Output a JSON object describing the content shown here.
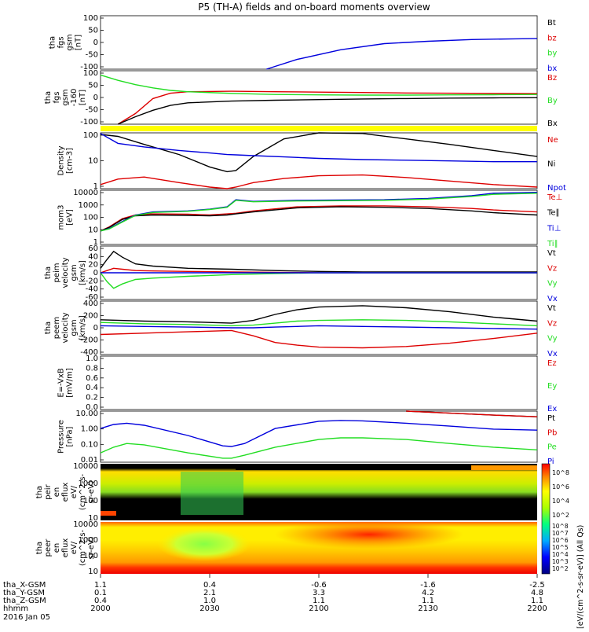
{
  "title": "P5 (TH-A) fields and on-board moments overview",
  "footer": {
    "rows": [
      {
        "label": "tha_X-GSM",
        "values": [
          "1.1",
          "0.4",
          "-0.6",
          "-1.6",
          "-2.5"
        ]
      },
      {
        "label": "tha_Y-GSM",
        "values": [
          "0.1",
          "2.1",
          "3.3",
          "4.2",
          "4.8"
        ]
      },
      {
        "label": "tha_Z-GSM",
        "values": [
          "0.4",
          "1.0",
          "1.1",
          "1.1",
          "1.1"
        ]
      },
      {
        "label": "hhmm",
        "values": [
          "2000",
          "2030",
          "2100",
          "2130",
          "2200"
        ]
      }
    ],
    "date": "2016 Jan 05"
  },
  "colorbar": {
    "label": "[eV/(cm^2-s-sr-eV)] (All Qs)",
    "ticks_upper": [
      "10^8",
      "10^6",
      "10^4",
      "10^2"
    ],
    "ticks_lower": [
      "10^8",
      "10^7",
      "10^6",
      "10^5",
      "10^4",
      "10^3",
      "10^2"
    ]
  },
  "colors": {
    "black": "#000000",
    "red": "#dd0000",
    "green": "#22dd22",
    "blue": "#0000dd",
    "yellow": "#ffff00"
  },
  "chart_data": [
    {
      "id": "fgs-gsm",
      "type": "line",
      "ylabel": [
        "tha",
        "fgs",
        "gsm",
        "[nT]"
      ],
      "yticks": [
        "100",
        "50",
        "0",
        "-50",
        "-100"
      ],
      "ylim": [
        -100,
        120
      ],
      "x": [
        0,
        0.38,
        0.45,
        0.55,
        0.65,
        0.75,
        0.85,
        0.95,
        1.0
      ],
      "series": [
        {
          "name": "Bt",
          "color": "#000000",
          "values": [
            null,
            null,
            null,
            null,
            null,
            null,
            null,
            null,
            null
          ]
        },
        {
          "name": "bz",
          "color": "#dd0000",
          "values": [
            null,
            null,
            null,
            null,
            null,
            null,
            null,
            null,
            null
          ]
        },
        {
          "name": "by",
          "color": "#22dd22",
          "values": [
            null,
            null,
            null,
            null,
            null,
            null,
            null,
            null,
            null
          ]
        },
        {
          "name": "bx",
          "color": "#0000dd",
          "values": [
            null,
            -100,
            -60,
            -20,
            5,
            15,
            22,
            25,
            26
          ]
        }
      ]
    },
    {
      "id": "fgs-gsm-160",
      "type": "line",
      "ylabel": [
        "tha",
        "fgs",
        "gsm",
        "-160",
        "[nT]"
      ],
      "yticks": [
        "100",
        "50",
        "0",
        "-50",
        "-100"
      ],
      "ylim": [
        -130,
        120
      ],
      "x": [
        0.0,
        0.04,
        0.08,
        0.12,
        0.16,
        0.2,
        0.3,
        0.4,
        0.5,
        0.6,
        0.7,
        0.8,
        0.9,
        1.0
      ],
      "series": [
        {
          "name": "Bz",
          "color": "#dd0000",
          "values": [
            null,
            -130,
            -80,
            -10,
            15,
            22,
            24,
            22,
            20,
            18,
            16,
            15,
            14,
            13
          ]
        },
        {
          "name": "By",
          "color": "#22dd22",
          "values": [
            100,
            75,
            55,
            40,
            28,
            22,
            14,
            9,
            7,
            6,
            6,
            7,
            8,
            9
          ]
        },
        {
          "name": "Bx",
          "color": "#000000",
          "values": [
            null,
            -130,
            -95,
            -65,
            -42,
            -30,
            -22,
            -18,
            -15,
            -12,
            -10,
            -8,
            -7,
            -6
          ]
        }
      ]
    },
    {
      "id": "density",
      "type": "line",
      "ylabel": [
        "Density",
        "[cm-3]"
      ],
      "yticks": [
        "100",
        "10",
        "1"
      ],
      "yscale": "log",
      "ylim": [
        0.5,
        300
      ],
      "x": [
        0,
        0.04,
        0.1,
        0.18,
        0.25,
        0.29,
        0.31,
        0.35,
        0.42,
        0.5,
        0.6,
        0.7,
        0.8,
        0.9,
        1.0
      ],
      "series": [
        {
          "name": "Ne",
          "color": "#dd0000",
          "values": [
            0.8,
            1.5,
            1.9,
            1.0,
            0.6,
            0.5,
            0.6,
            1.0,
            1.6,
            2.2,
            2.4,
            1.8,
            1.2,
            0.8,
            0.6
          ]
        },
        {
          "name": "Ni",
          "color": "#000000",
          "values": [
            250,
            200,
            80,
            25,
            6,
            3.5,
            4,
            20,
            150,
            300,
            280,
            150,
            80,
            40,
            20
          ]
        },
        {
          "name": "Npot",
          "color": "#0000dd",
          "values": [
            280,
            90,
            60,
            40,
            30,
            25,
            24,
            22,
            19,
            16,
            14,
            13,
            12,
            11,
            11
          ]
        }
      ],
      "legend": [
        "Ne",
        "Ni",
        "Npot"
      ]
    },
    {
      "id": "temperature",
      "type": "line",
      "ylabel": [
        "mom3",
        "[eV]"
      ],
      "yticks": [
        "10000",
        "1000",
        "100",
        "10",
        "1"
      ],
      "yscale": "log",
      "ylim": [
        1,
        10000
      ],
      "x": [
        0,
        0.02,
        0.05,
        0.08,
        0.12,
        0.2,
        0.25,
        0.29,
        0.31,
        0.35,
        0.45,
        0.55,
        0.65,
        0.75,
        0.85,
        0.9,
        1.0
      ],
      "series": [
        {
          "name": "Te⊥",
          "color": "#dd0000",
          "values": [
            10,
            20,
            80,
            150,
            180,
            170,
            150,
            180,
            200,
            300,
            600,
            700,
            700,
            600,
            450,
            350,
            250
          ]
        },
        {
          "name": "Te∥",
          "color": "#000000",
          "values": [
            10,
            18,
            70,
            130,
            150,
            140,
            130,
            150,
            180,
            250,
            500,
            600,
            550,
            450,
            300,
            220,
            150
          ]
        },
        {
          "name": "Ti⊥",
          "color": "#0000dd",
          "values": [
            10,
            15,
            50,
            150,
            250,
            300,
            400,
            600,
            2000,
            1500,
            1800,
            1900,
            2000,
            2500,
            4000,
            6000,
            7000
          ]
        },
        {
          "name": "Ti∥",
          "color": "#22dd22",
          "values": [
            10,
            14,
            45,
            140,
            230,
            280,
            380,
            550,
            1800,
            1400,
            1600,
            1700,
            1800,
            2200,
            3500,
            5000,
            6000
          ]
        }
      ]
    },
    {
      "id": "peim-velocity",
      "type": "line",
      "ylabel": [
        "tha",
        "peim",
        "velocity",
        "gsm",
        "[km/s]"
      ],
      "yticks": [
        "60",
        "40",
        "20",
        "0",
        "-20",
        "-40",
        "-60"
      ],
      "ylim": [
        -60,
        60
      ],
      "x": [
        0,
        0.015,
        0.03,
        0.05,
        0.08,
        0.12,
        0.2,
        0.3,
        0.4,
        0.5,
        0.6,
        0.7,
        0.8,
        0.9,
        1.0
      ],
      "series": [
        {
          "name": "Vt",
          "color": "#000000",
          "values": [
            10,
            30,
            48,
            35,
            20,
            15,
            10,
            8,
            5,
            3,
            2,
            2,
            2,
            2,
            2
          ]
        },
        {
          "name": "Vz",
          "color": "#dd0000",
          "values": [
            0,
            5,
            10,
            8,
            5,
            4,
            3,
            2,
            1,
            0,
            0,
            0,
            0,
            0,
            0
          ]
        },
        {
          "name": "Vy",
          "color": "#22dd22",
          "values": [
            0,
            -20,
            -35,
            -25,
            -15,
            -12,
            -8,
            -4,
            -2,
            0,
            0,
            0,
            0,
            0,
            0
          ]
        },
        {
          "name": "Vx",
          "color": "#0000dd",
          "values": [
            0,
            0,
            0,
            0,
            0,
            0,
            0,
            0,
            0,
            0,
            0,
            0,
            0,
            0,
            0
          ]
        }
      ]
    },
    {
      "id": "peem-velocity",
      "type": "line",
      "ylabel": [
        "tha",
        "peem",
        "velocity",
        "gsm",
        "[km/s]"
      ],
      "yticks": [
        "400",
        "200",
        "0",
        "-200",
        "-400"
      ],
      "ylim": [
        -400,
        400
      ],
      "x": [
        0,
        0.1,
        0.2,
        0.3,
        0.35,
        0.4,
        0.45,
        0.5,
        0.6,
        0.7,
        0.8,
        0.9,
        1.0
      ],
      "series": [
        {
          "name": "Vt",
          "color": "#000000",
          "values": [
            120,
            100,
            90,
            70,
            110,
            200,
            270,
            310,
            330,
            300,
            240,
            160,
            100
          ]
        },
        {
          "name": "Vz",
          "color": "#dd0000",
          "values": [
            -100,
            -80,
            -60,
            -40,
            -120,
            -220,
            -260,
            -290,
            -300,
            -280,
            -230,
            -160,
            -80
          ]
        },
        {
          "name": "Vy",
          "color": "#22dd22",
          "values": [
            80,
            60,
            50,
            30,
            40,
            70,
            100,
            110,
            120,
            110,
            90,
            60,
            30
          ]
        },
        {
          "name": "Vx",
          "color": "#0000dd",
          "values": [
            30,
            20,
            10,
            0,
            0,
            10,
            20,
            30,
            20,
            10,
            0,
            -10,
            -20
          ]
        }
      ]
    },
    {
      "id": "efield",
      "type": "line",
      "ylabel": [
        "E=-VxB",
        "[mV/m]"
      ],
      "yticks": [
        "1.0",
        "0.8",
        "0.6",
        "0.4",
        "0.2",
        "0.0"
      ],
      "ylim": [
        0,
        1
      ],
      "x": [
        0.7,
        0.8,
        0.9,
        1.0
      ],
      "series": [
        {
          "name": "Ez",
          "color": "#dd0000",
          "values": [
            0.0,
            null,
            null,
            null
          ]
        },
        {
          "name": "Ey",
          "color": "#22dd22",
          "values": [
            null,
            null,
            null,
            null
          ]
        },
        {
          "name": "Ex",
          "color": "#0000dd",
          "values": [
            null,
            null,
            null,
            null
          ]
        }
      ]
    },
    {
      "id": "pressure",
      "type": "line",
      "ylabel": [
        "Pressure",
        "[nPa]"
      ],
      "yticks": [
        "10.00",
        "1.00",
        "0.10",
        "0.01"
      ],
      "yscale": "log",
      "ylim": [
        0.006,
        40
      ],
      "x": [
        0,
        0.03,
        0.06,
        0.1,
        0.2,
        0.28,
        0.3,
        0.33,
        0.4,
        0.5,
        0.55,
        0.6,
        0.7,
        0.8,
        0.9,
        1.0
      ],
      "series": [
        {
          "name": "Pt",
          "color": "#000000",
          "values": [
            null,
            null,
            null,
            null,
            null,
            null,
            null,
            null,
            null,
            null,
            null,
            null,
            40,
            28,
            20,
            15
          ]
        },
        {
          "name": "Pb",
          "color": "#dd0000",
          "values": [
            null,
            null,
            null,
            null,
            null,
            null,
            null,
            null,
            null,
            null,
            null,
            null,
            40,
            28,
            20,
            15
          ]
        },
        {
          "name": "Pe",
          "color": "#22dd22",
          "values": [
            0.03,
            0.08,
            0.15,
            0.12,
            0.03,
            0.012,
            0.012,
            0.02,
            0.08,
            0.3,
            0.4,
            0.4,
            0.3,
            0.15,
            0.08,
            0.05
          ]
        },
        {
          "name": "Pi",
          "color": "#0000dd",
          "values": [
            2,
            4,
            5,
            3.5,
            0.6,
            0.1,
            0.09,
            0.15,
            2,
            7,
            8,
            7.5,
            5,
            3,
            1.8,
            1.5
          ]
        }
      ]
    },
    {
      "id": "peir-eflux",
      "type": "heatmap",
      "ylabel": [
        "tha",
        "peir",
        "en",
        "eflux",
        "eV/",
        "(cm^2-s-",
        "sr-eV)"
      ],
      "yticks": [
        "10000",
        "1000",
        "100",
        "10"
      ]
    },
    {
      "id": "peer-eflux",
      "type": "heatmap",
      "ylabel": [
        "tha",
        "peer",
        "en",
        "eflux",
        "eV/",
        "(cm^2-s-",
        "sr-eV)"
      ],
      "yticks": [
        "10000",
        "1000",
        "100",
        "10"
      ]
    }
  ]
}
